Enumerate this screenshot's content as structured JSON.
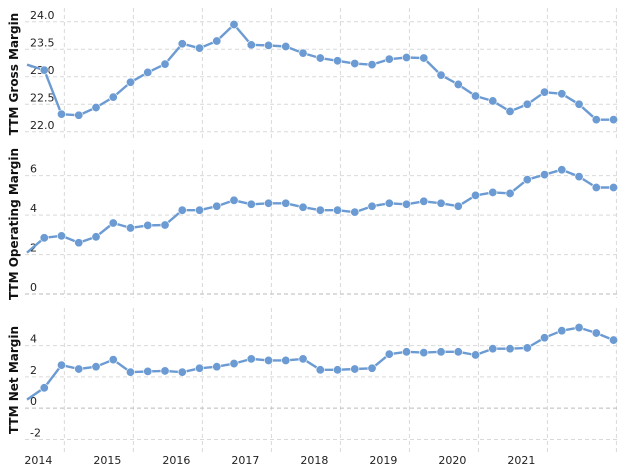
{
  "chart_data": [
    {
      "type": "line",
      "ylabel": "TTM Gross Margin",
      "ylim": [
        21.85,
        24.25
      ],
      "yticks": [
        "24.0",
        "23.5",
        "23.0",
        "22.5",
        "22.0"
      ],
      "grid": true,
      "x": [
        "2013-06",
        "2013-09",
        "2013-12",
        "2014-03",
        "2014-06",
        "2014-09",
        "2014-12",
        "2015-03",
        "2015-06",
        "2015-09",
        "2015-12",
        "2016-03",
        "2016-06",
        "2016-09",
        "2016-12",
        "2017-03",
        "2017-06",
        "2017-09",
        "2017-12",
        "2018-03",
        "2018-06",
        "2018-09",
        "2018-12",
        "2019-03",
        "2019-06",
        "2019-09",
        "2019-12",
        "2020-03",
        "2020-06",
        "2020-09",
        "2020-12",
        "2021-03",
        "2021-06",
        "2021-09",
        "2021-12"
      ],
      "values": [
        23.22,
        23.12,
        22.32,
        22.3,
        22.44,
        22.63,
        22.9,
        23.08,
        23.23,
        23.6,
        23.52,
        23.65,
        23.95,
        23.58,
        23.57,
        23.55,
        23.43,
        23.34,
        23.29,
        23.24,
        23.22,
        23.32,
        23.35,
        23.34,
        23.03,
        22.86,
        22.65,
        22.56,
        22.37,
        22.5,
        22.72,
        22.69,
        22.5,
        22.22,
        22.22
      ]
    },
    {
      "type": "line",
      "ylabel": "TTM Operating Margin",
      "ylim": [
        -0.2,
        7.3
      ],
      "yticks": [
        "6",
        "4",
        "2",
        "0"
      ],
      "grid": true,
      "x": [
        "2013-06",
        "2013-09",
        "2013-12",
        "2014-03",
        "2014-06",
        "2014-09",
        "2014-12",
        "2015-03",
        "2015-06",
        "2015-09",
        "2015-12",
        "2016-03",
        "2016-06",
        "2016-09",
        "2016-12",
        "2017-03",
        "2017-06",
        "2017-09",
        "2017-12",
        "2018-03",
        "2018-06",
        "2018-09",
        "2018-12",
        "2019-03",
        "2019-06",
        "2019-09",
        "2019-12",
        "2020-03",
        "2020-06",
        "2020-09",
        "2020-12",
        "2021-03",
        "2021-06",
        "2021-09",
        "2021-12"
      ],
      "values": [
        2.1,
        2.85,
        2.95,
        2.6,
        2.9,
        3.6,
        3.35,
        3.48,
        3.5,
        4.25,
        4.25,
        4.45,
        4.75,
        4.55,
        4.6,
        4.6,
        4.4,
        4.25,
        4.25,
        4.15,
        4.45,
        4.6,
        4.55,
        4.7,
        4.6,
        4.45,
        5.0,
        5.15,
        5.1,
        5.8,
        6.05,
        6.3,
        5.95,
        5.4,
        5.4
      ]
    },
    {
      "type": "line",
      "ylabel": "TTM Net Margin",
      "ylim": [
        -2.8,
        6.4
      ],
      "yticks": [
        "4",
        "2",
        "0",
        "-2"
      ],
      "grid": true,
      "x": [
        "2013-06",
        "2013-09",
        "2013-12",
        "2014-03",
        "2014-06",
        "2014-09",
        "2014-12",
        "2015-03",
        "2015-06",
        "2015-09",
        "2015-12",
        "2016-03",
        "2016-06",
        "2016-09",
        "2016-12",
        "2017-03",
        "2017-06",
        "2017-09",
        "2017-12",
        "2018-03",
        "2018-06",
        "2018-09",
        "2018-12",
        "2019-03",
        "2019-06",
        "2019-09",
        "2019-12",
        "2020-03",
        "2020-06",
        "2020-09",
        "2020-12",
        "2021-03",
        "2021-06",
        "2021-09",
        "2021-12"
      ],
      "values": [
        0.55,
        1.3,
        2.75,
        2.5,
        2.65,
        3.1,
        2.3,
        2.35,
        2.38,
        2.3,
        2.55,
        2.65,
        2.85,
        3.15,
        3.05,
        3.05,
        3.15,
        2.45,
        2.45,
        2.5,
        2.55,
        3.45,
        3.6,
        3.55,
        3.6,
        3.6,
        3.4,
        3.8,
        3.8,
        3.85,
        4.5,
        4.95,
        5.15,
        4.8,
        4.35
      ]
    }
  ],
  "x_axis": {
    "ticks": [
      "2014",
      "2015",
      "2016",
      "2017",
      "2018",
      "2019",
      "2020",
      "2021"
    ]
  },
  "colors": {
    "line": "#6b9bd2",
    "marker": "#6b9bd2",
    "grid": "#d9d9d9"
  }
}
